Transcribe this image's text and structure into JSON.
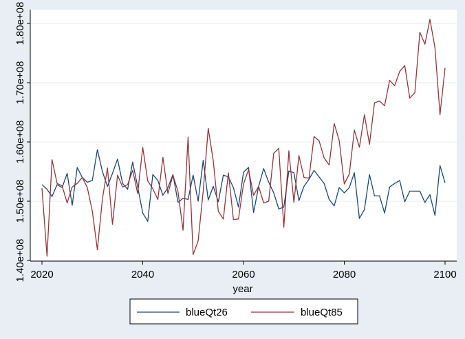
{
  "chart_data": {
    "type": "line",
    "xlabel": "year",
    "ylabel": "",
    "xlim": [
      2020,
      2100
    ],
    "ylim": [
      140000000,
      185000000
    ],
    "x_ticks": [
      2020,
      2040,
      2060,
      2080,
      2100
    ],
    "x_tick_labels": [
      "2020",
      "2040",
      "2060",
      "2080",
      "2100"
    ],
    "y_ticks": [
      140000000,
      150000000,
      160000000,
      170000000,
      180000000
    ],
    "y_tick_labels": [
      "1.40e+08",
      "1.50e+08",
      "1.60e+08",
      "1.70e+08",
      "1.80e+08"
    ],
    "grid": true,
    "legend_placement": "bottom",
    "colors": {
      "background": "#e8eef3",
      "plot_bg": "#ffffff",
      "grid": "#e6eaee"
    },
    "x": [
      2020,
      2021,
      2022,
      2023,
      2024,
      2025,
      2026,
      2027,
      2028,
      2029,
      2030,
      2031,
      2032,
      2033,
      2034,
      2035,
      2036,
      2037,
      2038,
      2039,
      2040,
      2041,
      2042,
      2043,
      2044,
      2045,
      2046,
      2047,
      2048,
      2049,
      2050,
      2051,
      2052,
      2053,
      2054,
      2055,
      2056,
      2057,
      2058,
      2059,
      2060,
      2061,
      2062,
      2063,
      2064,
      2065,
      2066,
      2067,
      2068,
      2069,
      2070,
      2071,
      2072,
      2073,
      2074,
      2075,
      2076,
      2077,
      2078,
      2079,
      2080,
      2081,
      2082,
      2083,
      2084,
      2085,
      2086,
      2087,
      2088,
      2089,
      2090,
      2091,
      2092,
      2093,
      2094,
      2095,
      2096,
      2097,
      2098,
      2099,
      2100
    ],
    "series": [
      {
        "name": "blueQt26",
        "color": "#1a476f",
        "values": [
          152.8,
          152.0,
          150.8,
          152.8,
          152.3,
          154.7,
          149.3,
          155.7,
          154.0,
          153.2,
          153.5,
          158.7,
          155.0,
          152.5,
          154.7,
          157.1,
          153.0,
          152.0,
          156.6,
          152.4,
          148.0,
          146.6,
          154.5,
          153.5,
          151.0,
          152.3,
          154.5,
          149.8,
          150.5,
          150.3,
          154.4,
          150.0,
          156.9,
          150.2,
          152.5,
          149.9,
          154.4,
          154.1,
          152.3,
          149.0,
          154.9,
          155.7,
          148.1,
          152.5,
          155.5,
          153.2,
          151.4,
          148.7,
          149.0,
          155.1,
          154.8,
          150.1,
          152.5,
          153.7,
          155.2,
          154.1,
          153.0,
          150.3,
          149.2,
          152.3,
          151.4,
          152.3,
          154.8,
          147.1,
          148.6,
          154.5,
          150.9,
          150.9,
          148.0,
          152.4,
          153.0,
          153.5,
          149.9,
          151.7,
          151.7,
          151.7,
          149.8,
          151.1,
          147.6,
          156.0,
          153.1
        ]
      },
      {
        "name": "blueQt85",
        "color": "#90353b",
        "values": [
          152.2,
          140.7,
          157.0,
          153.0,
          152.6,
          149.7,
          152.4,
          153.0,
          154.0,
          152.3,
          148.3,
          141.8,
          150.4,
          155.6,
          146.1,
          154.4,
          152.4,
          152.8,
          155.2,
          151.3,
          159.1,
          153.4,
          152.1,
          150.3,
          157.4,
          151.3,
          154.4,
          151.6,
          145.1,
          160.8,
          141.0,
          143.3,
          151.7,
          162.3,
          156.8,
          148.3,
          147.0,
          154.8,
          146.9,
          147.0,
          152.9,
          155.3,
          151.0,
          152.5,
          149.7,
          150.0,
          158.1,
          158.9,
          145.6,
          158.5,
          149.8,
          157.7,
          154.0,
          153.9,
          160.9,
          160.2,
          157.3,
          156.1,
          163.1,
          160.2,
          152.9,
          154.6,
          162.0,
          159.1,
          164.6,
          159.6,
          166.6,
          166.9,
          166.1,
          170.4,
          169.5,
          171.9,
          172.9,
          167.4,
          168.3,
          178.5,
          176.5,
          180.7,
          175.9,
          164.6,
          172.5
        ]
      }
    ],
    "value_unit_note": "values in millions"
  },
  "legend": {
    "items": [
      {
        "label": "blueQt26"
      },
      {
        "label": "blueQt85"
      }
    ]
  }
}
